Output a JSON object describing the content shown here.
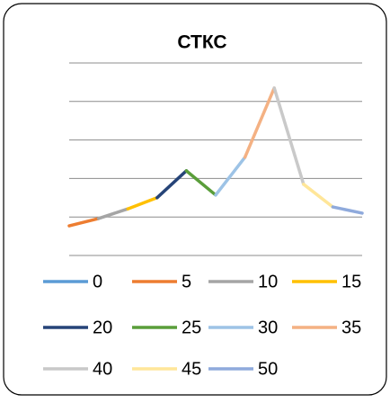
{
  "chart_data": {
    "type": "line",
    "title": "СТКС",
    "x": [
      0,
      5,
      10,
      15,
      20,
      25,
      30,
      35,
      40,
      45,
      50
    ],
    "xlim": [
      0,
      50
    ],
    "ylim": [
      0,
      5
    ],
    "yticks": [
      0,
      1,
      2,
      3,
      4,
      5
    ],
    "grid": true,
    "series": [
      {
        "name": "0",
        "color": "#5b9bd5",
        "values": [
          0.77,
          null,
          null,
          null,
          null,
          null,
          null,
          null,
          null,
          null,
          null
        ]
      },
      {
        "name": "5",
        "color": "#ed7d31",
        "values": [
          0.77,
          0.96,
          null,
          null,
          null,
          null,
          null,
          null,
          null,
          null,
          null
        ]
      },
      {
        "name": "10",
        "color": "#a5a5a5",
        "values": [
          null,
          0.96,
          1.21,
          null,
          null,
          null,
          null,
          null,
          null,
          null,
          null
        ]
      },
      {
        "name": "15",
        "color": "#ffc000",
        "values": [
          null,
          null,
          1.21,
          1.5,
          null,
          null,
          null,
          null,
          null,
          null,
          null
        ]
      },
      {
        "name": "20",
        "color": "#264478",
        "values": [
          null,
          null,
          null,
          1.5,
          2.2,
          null,
          null,
          null,
          null,
          null,
          null
        ]
      },
      {
        "name": "25",
        "color": "#5a9e3a",
        "values": [
          null,
          null,
          null,
          null,
          2.2,
          1.57,
          null,
          null,
          null,
          null,
          null
        ]
      },
      {
        "name": "30",
        "color": "#9dc3e6",
        "values": [
          null,
          null,
          null,
          null,
          null,
          1.57,
          2.55,
          null,
          null,
          null,
          null
        ]
      },
      {
        "name": "35",
        "color": "#f4b183",
        "values": [
          null,
          null,
          null,
          null,
          null,
          null,
          2.55,
          4.35,
          null,
          null,
          null
        ]
      },
      {
        "name": "40",
        "color": "#c9c9c9",
        "values": [
          null,
          null,
          null,
          null,
          null,
          null,
          null,
          4.35,
          1.85,
          null,
          null
        ]
      },
      {
        "name": "45",
        "color": "#ffe699",
        "values": [
          null,
          null,
          null,
          null,
          null,
          null,
          null,
          null,
          1.85,
          1.26,
          null
        ]
      },
      {
        "name": "50",
        "color": "#8faadc",
        "values": [
          null,
          null,
          null,
          null,
          null,
          null,
          null,
          null,
          null,
          1.26,
          1.1
        ]
      }
    ]
  }
}
